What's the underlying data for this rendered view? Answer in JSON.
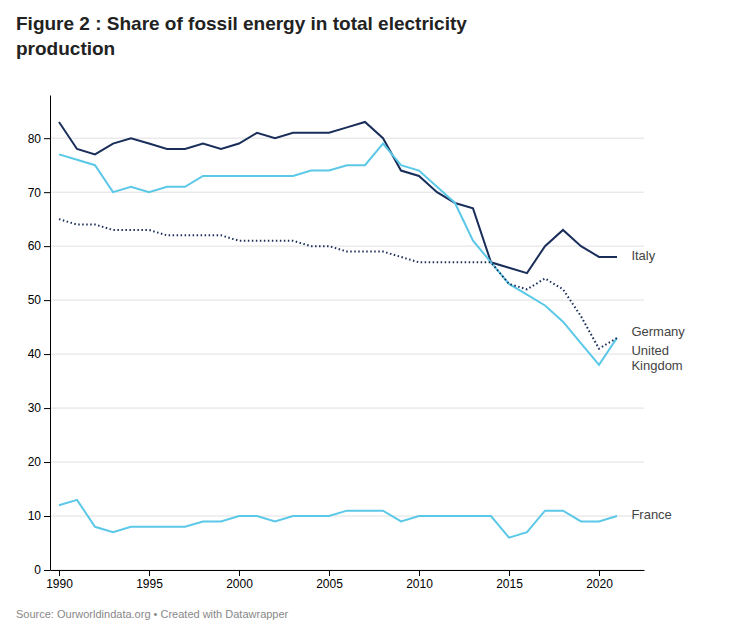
{
  "chart_data": {
    "type": "line",
    "title": "Figure 2 : Share of fossil energy in total electricity\nproduction",
    "source": "Source: Ourworldindata.org • Created with Datawrapper",
    "x": [
      1990,
      1991,
      1992,
      1993,
      1994,
      1995,
      1996,
      1997,
      1998,
      1999,
      2000,
      2001,
      2002,
      2003,
      2004,
      2005,
      2006,
      2007,
      2008,
      2009,
      2010,
      2011,
      2012,
      2013,
      2014,
      2015,
      2016,
      2017,
      2018,
      2019,
      2020,
      2021
    ],
    "series": [
      {
        "name": "Italy",
        "color": "#1a2e5a",
        "line_style": "solid",
        "values": [
          83,
          78,
          77,
          79,
          80,
          79,
          78,
          78,
          79,
          78,
          79,
          81,
          80,
          81,
          81,
          81,
          82,
          83,
          80,
          74,
          73,
          70,
          68,
          67,
          57,
          56,
          55,
          60,
          63,
          60,
          58,
          58
        ]
      },
      {
        "name": "United Kingdom",
        "color": "#5bc8e8",
        "line_style": "solid",
        "values": [
          77,
          76,
          75,
          70,
          71,
          70,
          71,
          71,
          73,
          73,
          73,
          73,
          73,
          73,
          74,
          74,
          75,
          75,
          79,
          75,
          74,
          71,
          68,
          61,
          57,
          53,
          51,
          49,
          46,
          42,
          38,
          43
        ]
      },
      {
        "name": "Germany",
        "color": "#1a2e5a",
        "line_style": "dotted",
        "values": [
          65,
          64,
          64,
          63,
          63,
          63,
          62,
          62,
          62,
          62,
          61,
          61,
          61,
          61,
          60,
          60,
          59,
          59,
          59,
          58,
          57,
          57,
          57,
          57,
          57,
          53,
          52,
          54,
          52,
          47,
          41,
          43
        ]
      },
      {
        "name": "France",
        "color": "#5bc8e8",
        "line_style": "solid",
        "values": [
          12,
          13,
          8,
          7,
          8,
          8,
          8,
          8,
          9,
          9,
          10,
          10,
          9,
          10,
          10,
          10,
          11,
          11,
          11,
          9,
          10,
          10,
          10,
          10,
          10,
          6,
          7,
          11,
          11,
          9,
          9,
          10
        ]
      }
    ],
    "annotations": [
      {
        "text": "Italy",
        "x": 2021.8,
        "y": 58
      },
      {
        "text": "Germany",
        "x": 2021.8,
        "y": 44
      },
      {
        "text": "United\nKingdom",
        "x": 2021.8,
        "y": 39
      },
      {
        "text": "France",
        "x": 2021.8,
        "y": 10
      }
    ],
    "xlim": [
      1989.5,
      2022.5
    ],
    "xticks": [
      1990,
      1995,
      2000,
      2005,
      2010,
      2015,
      2020
    ],
    "ylim": [
      0,
      88
    ],
    "yticks": [
      0,
      10,
      20,
      30,
      40,
      50,
      60,
      70,
      80
    ],
    "grid": true
  }
}
